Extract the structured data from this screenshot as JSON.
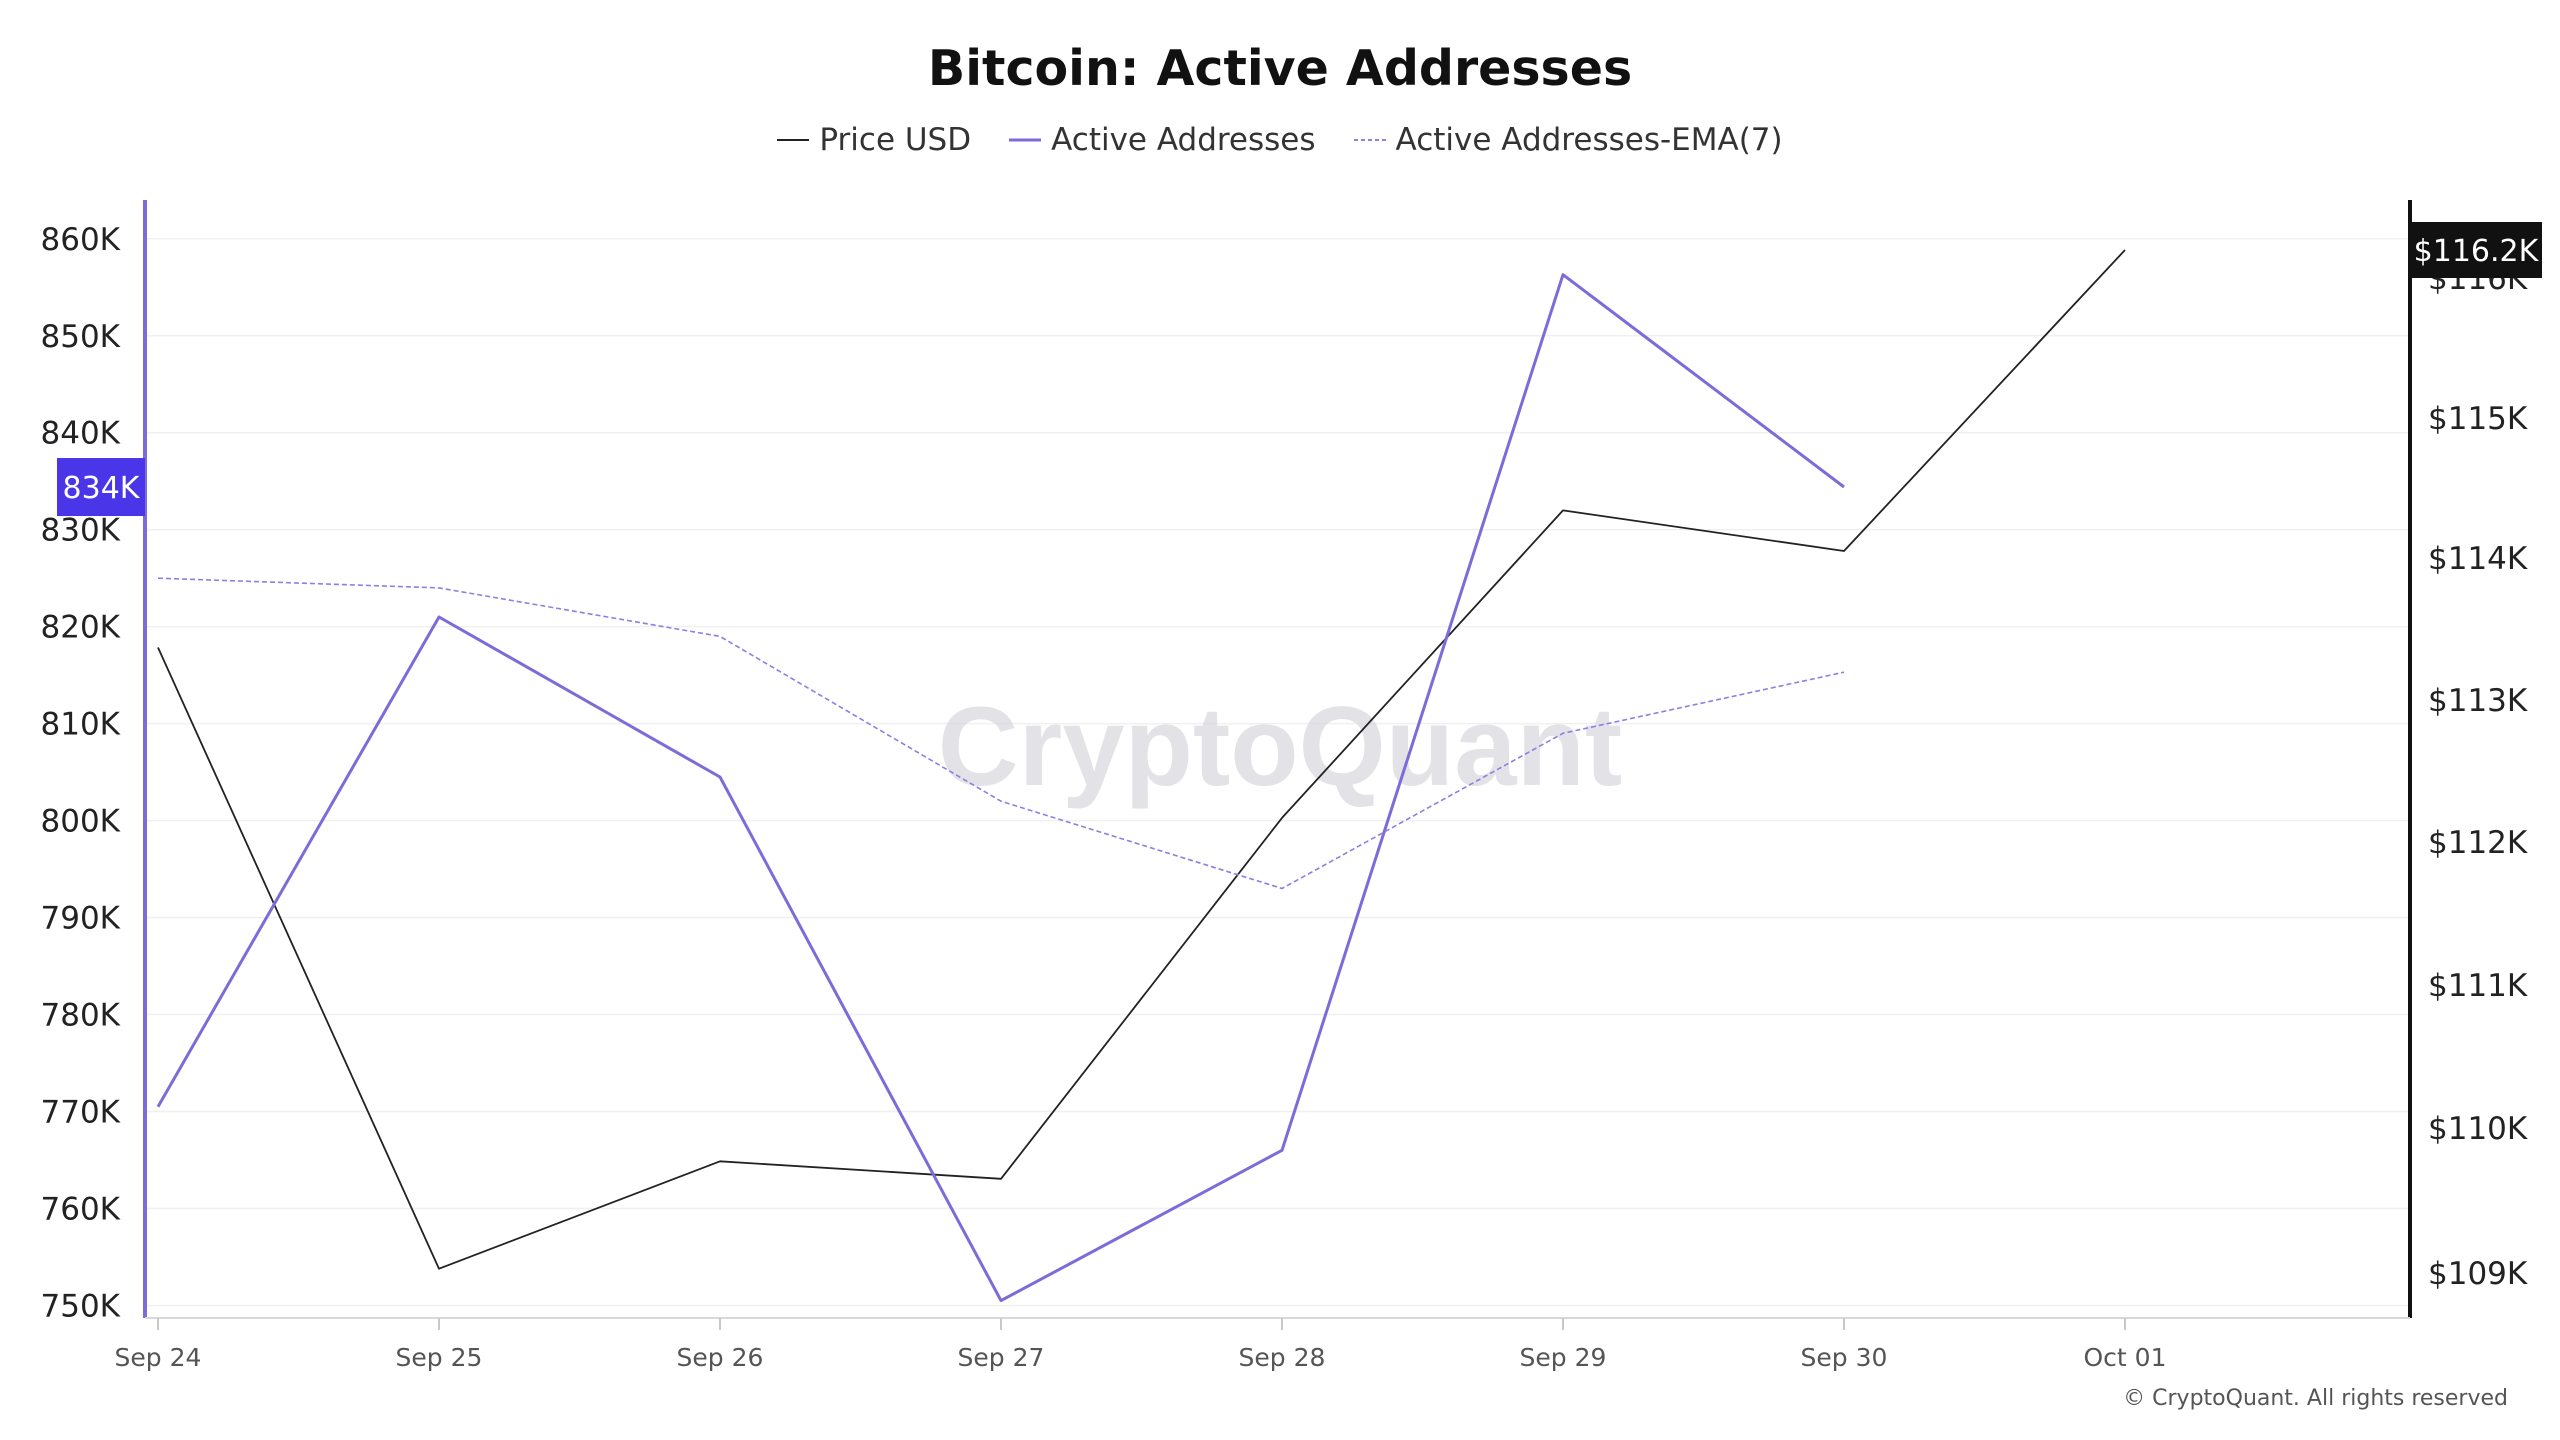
{
  "chart_data": {
    "type": "line",
    "title": "Bitcoin: Active Addresses",
    "categories": [
      "Sep 24",
      "Sep 25",
      "Sep 26",
      "Sep 27",
      "Sep 28",
      "Sep 29",
      "Sep 30",
      "Oct 01"
    ],
    "series": [
      {
        "name": "Price USD",
        "axis": "right",
        "color": "#222222",
        "values": [
          113370,
          109030,
          109770,
          109650,
          112170,
          114340,
          114050,
          116200
        ]
      },
      {
        "name": "Active Addresses",
        "axis": "left",
        "color": "#7b6cd9",
        "values": [
          770500,
          821000,
          804500,
          750500,
          766000,
          856300,
          834400,
          null
        ]
      },
      {
        "name": "Active Addresses-EMA(7)",
        "axis": "left",
        "color": "#8c80e0",
        "dashed": true,
        "values": [
          825000,
          824000,
          819000,
          802000,
          793000,
          809000,
          815300,
          null
        ]
      }
    ],
    "left_axis": {
      "ticks": [
        750000,
        760000,
        770000,
        780000,
        790000,
        800000,
        810000,
        820000,
        830000,
        840000,
        850000,
        860000
      ],
      "tick_labels": [
        "750K",
        "760K",
        "770K",
        "780K",
        "790K",
        "800K",
        "810K",
        "820K",
        "830K",
        "840K",
        "850K",
        "860K"
      ],
      "range": [
        748500,
        864000
      ],
      "current_value_label": "834K",
      "current_value": 834400,
      "badge_color": "#4a35e8"
    },
    "right_axis": {
      "ticks": [
        109000,
        110000,
        111000,
        112000,
        113000,
        114000,
        115000,
        116000
      ],
      "tick_labels": [
        "$109K",
        "$110K",
        "$111K",
        "$112K",
        "$113K",
        "$114K",
        "$115K",
        "$116K"
      ],
      "current_value_label": "$116.2K",
      "current_value": 116200,
      "badge_color": "#111111"
    },
    "grid": true,
    "legend_position": "top-center",
    "watermark": "CryptoQuant"
  },
  "copyright": "© CryptoQuant. All rights reserved"
}
